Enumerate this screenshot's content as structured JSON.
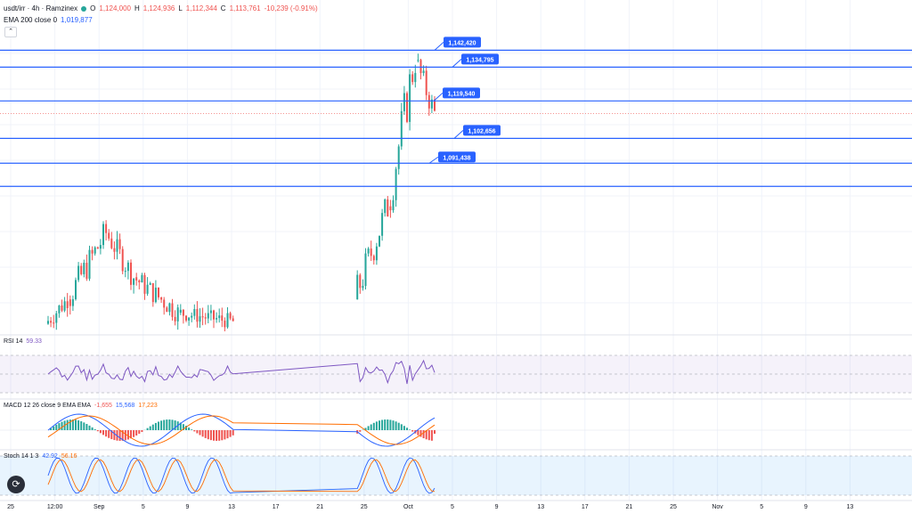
{
  "header": {
    "symbol": "usdt/irr · 4h · Ramzinex",
    "open_label": "O",
    "open": "1,124,000",
    "high_label": "H",
    "high": "1,124,936",
    "low_label": "L",
    "low": "1,112,344",
    "close_label": "C",
    "close": "1,113,761",
    "change": "-10,239 (-0.91%)",
    "ema_label": "EMA 200 close 0",
    "ema_value": "1,019,877",
    "collapse_icon": "chevron-up-icon"
  },
  "rsi": {
    "label": "RSI 14",
    "value": "59.33"
  },
  "macd": {
    "label": "MACD 12 26 close 9 EMA EMA",
    "hist": "-1,655",
    "macd": "15,568",
    "signal": "17,223"
  },
  "stoch": {
    "label": "Stoch 14 1 3",
    "k": "42.92",
    "d": "56.16"
  },
  "colors": {
    "up": "#26a69a",
    "down": "#ef5350",
    "level": "#2962ff",
    "rsi": "#7e57c2",
    "macd": "#2962ff",
    "signal": "#ff6d00"
  },
  "chart_data": {
    "type": "candlestick",
    "timeframe": "4h",
    "levels": [
      1142420,
      1134795,
      1119540,
      1102656,
      1091438
    ],
    "level_labels": [
      "1,142,420",
      "1,134,795",
      "1,119,540",
      "1,102,656",
      "1,091,438"
    ],
    "segments": [
      {
        "start": 1019000,
        "end": 1030000,
        "high": 1052000,
        "low": 1015000,
        "count": 8
      },
      {
        "start": 1030000,
        "end": 1060000,
        "high": 1070000,
        "low": 1020000,
        "count": 14
      },
      {
        "start": 1060000,
        "end": 1040000,
        "high": 1065000,
        "low": 1022000,
        "count": 10
      },
      {
        "start": 1040000,
        "end": 1024000,
        "high": 1042000,
        "low": 1016000,
        "count": 16
      },
      {
        "start": 1024000,
        "end": 1020000,
        "high": 1030000,
        "low": 1014000,
        "count": 20
      },
      {
        "start": 1030000,
        "end": 1072000,
        "high": 1078000,
        "low": 1024000,
        "count": 12
      },
      {
        "start": 1072000,
        "end": 1140000,
        "high": 1146000,
        "low": 1066000,
        "count": 10
      },
      {
        "start": 1138000,
        "end": 1113761,
        "high": 1142000,
        "low": 1106000,
        "count": 7
      }
    ],
    "x_ticks": [
      "25",
      "12:00",
      "Sep",
      "5",
      "9",
      "13",
      "17",
      "21",
      "25",
      "Oct",
      "5",
      "9",
      "13",
      "17",
      "21",
      "25",
      "Nov",
      "5",
      "9",
      "13"
    ],
    "rsi_band": [
      30,
      70
    ],
    "stoch_band": [
      20,
      80
    ],
    "visible_range": {
      "min": 1014000,
      "max": 1149000
    }
  }
}
